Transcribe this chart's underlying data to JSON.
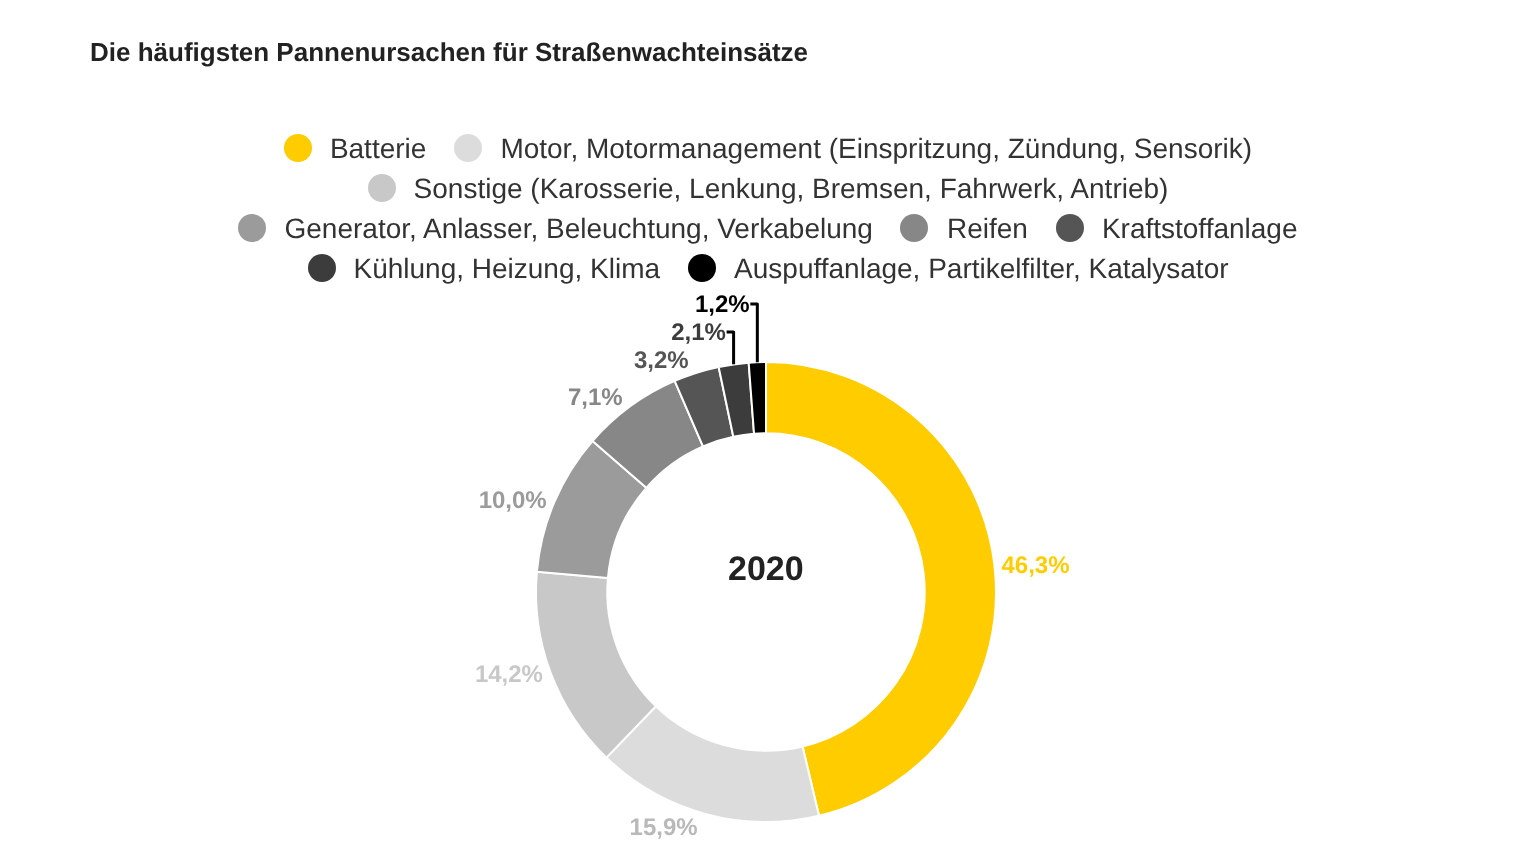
{
  "chart_data": {
    "type": "donut",
    "title": "Die häufigsten Pannenursachen für Straßenwachteinsätze",
    "categories": [
      "Batterie",
      "Motor, Motormanagement (Einspritzung, Zündung, Sensorik)",
      "Sonstige (Karosserie, Lenkung, Bremsen, Fahrwerk, Antrieb)",
      "Generator, Anlasser, Beleuchtung, Verkabelung",
      "Reifen",
      "Kraftstoffanlage",
      "Kühlung, Heizung, Klima",
      "Auspuffanlage, Partikelfilter, Katalysator"
    ],
    "values": [
      46.3,
      15.9,
      14.2,
      10.0,
      7.1,
      3.2,
      2.1,
      1.2
    ],
    "colors": [
      "#ffcc00",
      "#dcdcdc",
      "#c8c8c8",
      "#9b9b9b",
      "#878787",
      "#555555",
      "#3c3c3c",
      "#000000"
    ],
    "value_labels": [
      "46,3%",
      "15,9%",
      "14,2%",
      "10,0%",
      "7,1%",
      "3,2%",
      "2,1%",
      "1,2%"
    ],
    "annotations": [
      "2020"
    ],
    "legend": "top"
  }
}
